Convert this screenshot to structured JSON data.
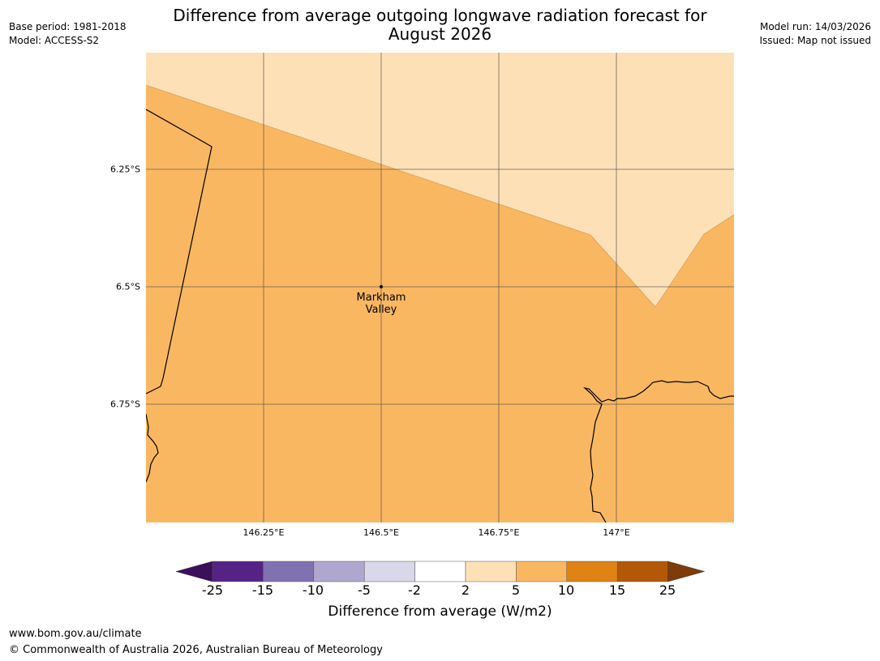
{
  "header": {
    "base_period": "Base period: 1981-2018",
    "model": "Model: ACCESS-S2",
    "model_run": "Model run: 14/03/2026",
    "issued": "Issued: Map not issued",
    "title_line1": "Difference from average outgoing longwave radiation forecast for",
    "title_line2": "August 2026"
  },
  "map": {
    "lat_labels": [
      "6.25°S",
      "6.5°S",
      "6.75°S"
    ],
    "lon_labels": [
      "146.25°E",
      "146.5°E",
      "146.75°E",
      "147°E"
    ],
    "place": {
      "name_line1": "Markham",
      "name_line2": "Valley"
    },
    "colors": {
      "band_2_5": "#fde0b6",
      "band_5_10": "#fab762",
      "gridline": "#4a4a4a",
      "coastline": "#000000"
    }
  },
  "colorbar": {
    "label": "Difference from average (W/m2)",
    "ticks": [
      "-25",
      "-15",
      "-10",
      "-5",
      "-2",
      "2",
      "5",
      "10",
      "15",
      "25"
    ],
    "colors": [
      "#3b0f59",
      "#552385",
      "#8071b0",
      "#b0a7d1",
      "#d9d8ea",
      "#ffffff",
      "#fde0b6",
      "#fab762",
      "#e08214",
      "#b35806",
      "#7f3b08"
    ]
  },
  "footer": {
    "url": "www.bom.gov.au/climate",
    "copyright": "© Commonwealth of Australia 2026, Australian Bureau of Meteorology"
  }
}
